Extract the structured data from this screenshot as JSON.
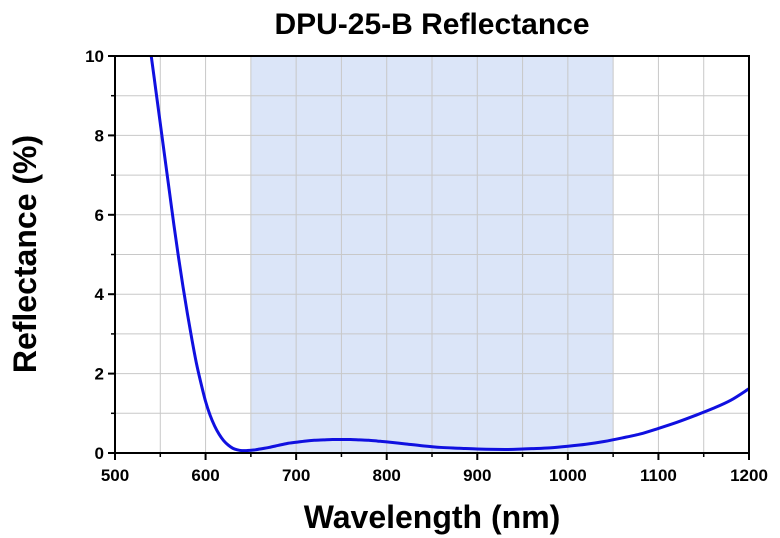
{
  "chart_data": {
    "type": "line",
    "title": "DPU-25-B Reflectance",
    "xlabel": "Wavelength (nm)",
    "ylabel": "Reflectance (%)",
    "xlim": [
      500,
      1200
    ],
    "ylim": [
      0,
      10
    ],
    "xticks": [
      "500",
      "600",
      "700",
      "800",
      "900",
      "1000",
      "1100",
      "1200"
    ],
    "yticks": [
      "0",
      "2",
      "4",
      "6",
      "8",
      "10"
    ],
    "grid": true,
    "highlight_band": {
      "x_start": 650,
      "x_end": 1050,
      "color": "#dbe5f8"
    },
    "series": [
      {
        "color": "#1010e0",
        "x": [
          537,
          540,
          545,
          550,
          555,
          560,
          565,
          570,
          575,
          580,
          585,
          590,
          595,
          600,
          605,
          610,
          615,
          620,
          625,
          630,
          635,
          640,
          645,
          650,
          655,
          660,
          670,
          680,
          690,
          700,
          710,
          720,
          730,
          740,
          750,
          760,
          770,
          780,
          790,
          800,
          820,
          840,
          860,
          880,
          900,
          920,
          940,
          950,
          960,
          980,
          1000,
          1020,
          1040,
          1060,
          1080,
          1100,
          1120,
          1140,
          1160,
          1180,
          1200
        ],
        "y": [
          10.4,
          10.0,
          9.15,
          8.3,
          7.45,
          6.6,
          5.75,
          4.95,
          4.2,
          3.5,
          2.85,
          2.25,
          1.75,
          1.3,
          0.95,
          0.68,
          0.47,
          0.31,
          0.2,
          0.12,
          0.08,
          0.06,
          0.06,
          0.07,
          0.08,
          0.1,
          0.14,
          0.19,
          0.24,
          0.27,
          0.3,
          0.32,
          0.33,
          0.34,
          0.34,
          0.34,
          0.33,
          0.32,
          0.3,
          0.28,
          0.23,
          0.18,
          0.14,
          0.12,
          0.1,
          0.09,
          0.09,
          0.1,
          0.11,
          0.13,
          0.17,
          0.22,
          0.29,
          0.38,
          0.48,
          0.62,
          0.77,
          0.94,
          1.12,
          1.33,
          1.62
        ]
      }
    ]
  }
}
